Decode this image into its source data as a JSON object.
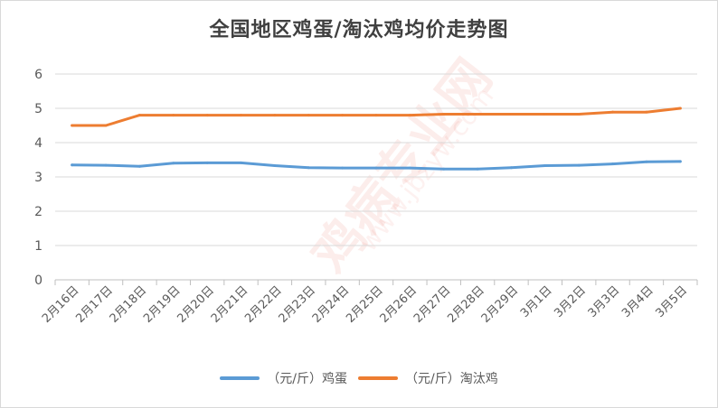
{
  "chart_data": {
    "type": "line",
    "title": "全国地区鸡蛋/淘汰鸡均价走势图",
    "categories": [
      "2月16日",
      "2月17日",
      "2月18日",
      "2月19日",
      "2月20日",
      "2月21日",
      "2月22日",
      "2月23日",
      "2月24日",
      "2月25日",
      "2月26日",
      "2月27日",
      "2月28日",
      "2月29日",
      "3月1日",
      "3月2日",
      "3月3日",
      "3月4日",
      "3月5日"
    ],
    "ylim": [
      0,
      6
    ],
    "yticks": [
      0,
      1,
      2,
      3,
      4,
      5,
      6
    ],
    "grid": true,
    "legend_position": "bottom",
    "series": [
      {
        "name": "（元/斤）鸡蛋",
        "color": "#5b9bd5",
        "values": [
          3.35,
          3.34,
          3.31,
          3.4,
          3.41,
          3.41,
          3.33,
          3.27,
          3.26,
          3.26,
          3.26,
          3.23,
          3.23,
          3.27,
          3.33,
          3.34,
          3.38,
          3.44,
          3.45
        ]
      },
      {
        "name": "（元/斤）淘汰鸡",
        "color": "#ed7d31",
        "values": [
          4.5,
          4.5,
          4.8,
          4.8,
          4.8,
          4.8,
          4.8,
          4.8,
          4.8,
          4.8,
          4.8,
          4.83,
          4.83,
          4.83,
          4.83,
          4.83,
          4.89,
          4.89,
          5.0
        ]
      }
    ]
  },
  "watermark": {
    "main": "鸡病专业网",
    "sub": "www.jbzyw.com"
  }
}
